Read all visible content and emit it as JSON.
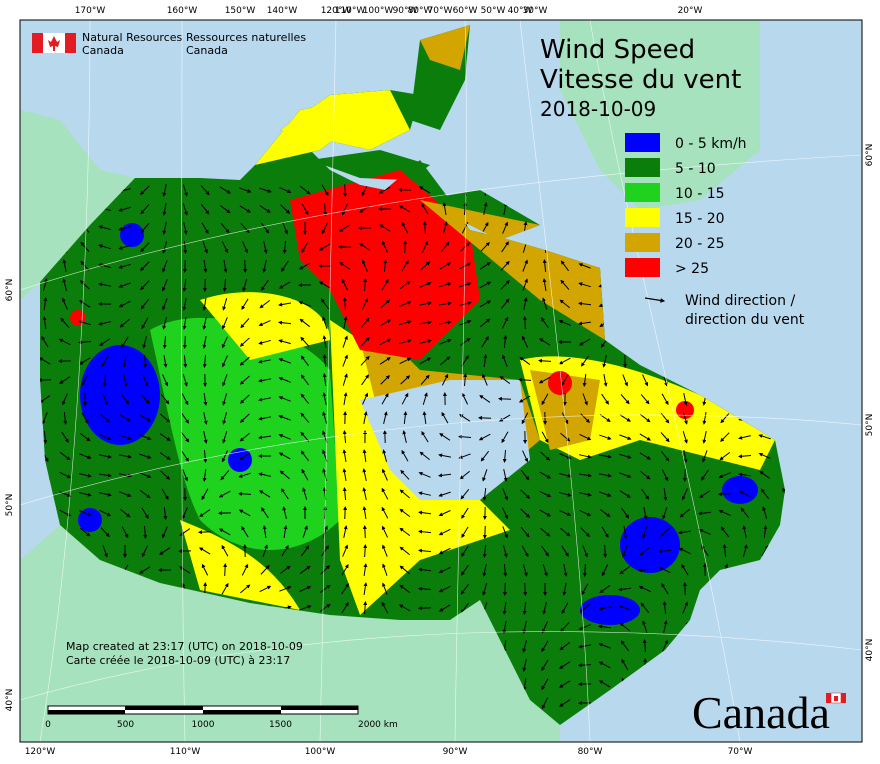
{
  "header": {
    "org_en": [
      "Natural Resources",
      "Canada"
    ],
    "org_fr": [
      "Ressources naturelles",
      "Canada"
    ]
  },
  "title": {
    "en": "Wind Speed",
    "fr": "Vitesse du vent",
    "date": "2018-10-09"
  },
  "legend": {
    "items": [
      {
        "label": "0 - 5 km/h",
        "color": "#0000ff"
      },
      {
        "label": "5 - 10",
        "color": "#0a7d0a"
      },
      {
        "label": "10 - 15",
        "color": "#1ed21e"
      },
      {
        "label": "15 - 20",
        "color": "#ffff00"
      },
      {
        "label": "20 - 25",
        "color": "#d2a500"
      },
      {
        "label": "> 25",
        "color": "#ff0000"
      }
    ],
    "direction": [
      "Wind direction /",
      "direction du vent"
    ]
  },
  "credits": [
    "Map created at 23:17 (UTC) on 2018-10-09",
    "Carte créée le 2018-10-09 (UTC) à 23:17"
  ],
  "scale_bar": {
    "labels": [
      "0",
      "500",
      "1000",
      "1500",
      "2000 km"
    ]
  },
  "graticule": {
    "top": [
      "170°W",
      "160°W",
      "150°W",
      "140°W",
      "120°W",
      "110°W",
      "100°W",
      "90°W",
      "80°W",
      "70°W",
      "60°W",
      "50°W",
      "40°W",
      "30°W",
      "20°W"
    ],
    "bottom": [
      "120°W",
      "110°W",
      "100°W",
      "90°W",
      "80°W",
      "70°W"
    ],
    "left": [
      "60°N",
      "50°N",
      "40°N"
    ],
    "right": [
      "60°N",
      "50°N",
      "40°N"
    ]
  },
  "wordmark": "Canada"
}
